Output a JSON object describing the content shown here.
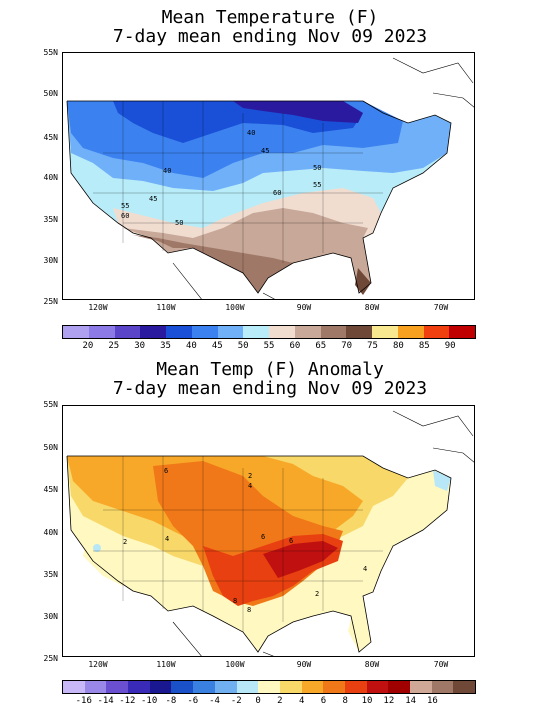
{
  "panels": [
    {
      "title_line1": "Mean Temperature (F)",
      "title_line2": "7-day mean ending Nov 09 2023",
      "colorbar_labels": [
        "20",
        "25",
        "30",
        "35",
        "40",
        "45",
        "50",
        "55",
        "60",
        "65",
        "70",
        "75",
        "80",
        "85",
        "90"
      ],
      "colorbar_colors": [
        "#b0a0f0",
        "#8c7ae6",
        "#5a44c8",
        "#2a1aa0",
        "#1a4fd8",
        "#3b82f0",
        "#70b0f8",
        "#b8ecf8",
        "#f0ddd0",
        "#c8a898",
        "#a07868",
        "#704838",
        "#f8e890",
        "#f8a020",
        "#f04010",
        "#c00000"
      ],
      "contour_labels": [
        "40",
        "45",
        "50",
        "55",
        "60",
        "40",
        "45",
        "50",
        "55",
        "60"
      ]
    },
    {
      "title_line1": "Mean Temp (F) Anomaly",
      "title_line2": "7-day mean ending Nov 09 2023",
      "colorbar_labels": [
        "-16",
        "-14",
        "-12",
        "-10",
        "-8",
        "-6",
        "-4",
        "-2",
        "0",
        "2",
        "4",
        "6",
        "8",
        "10",
        "12",
        "14",
        "16"
      ],
      "colorbar_colors": [
        "#c8b8f8",
        "#9a88e8",
        "#6a50d0",
        "#3a2ab8",
        "#1a1890",
        "#1a50c8",
        "#3a80e0",
        "#70b0f0",
        "#b8e8f8",
        "#fff8c0",
        "#f8d868",
        "#f8a828",
        "#f07818",
        "#e84010",
        "#c01010",
        "#a00000",
        "#d0a898",
        "#a07868",
        "#704838"
      ],
      "contour_labels": [
        "6",
        "2",
        "4",
        "2",
        "4",
        "6",
        "6",
        "8",
        "8",
        "2",
        "4"
      ]
    }
  ],
  "lat_labels": [
    "55N",
    "50N",
    "45N",
    "40N",
    "35N",
    "30N",
    "25N"
  ],
  "lon_labels": [
    "120W",
    "110W",
    "100W",
    "90W",
    "80W",
    "70W"
  ]
}
